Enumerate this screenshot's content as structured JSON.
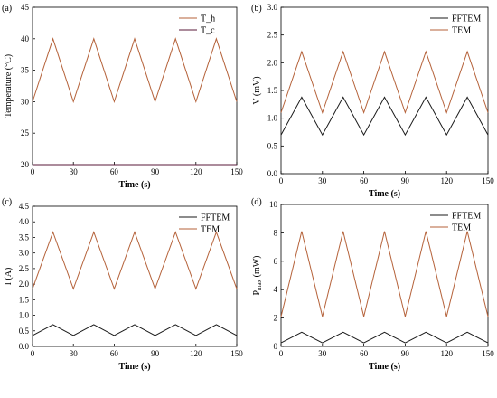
{
  "chart_data": [
    {
      "type": "line",
      "panel_label": "(a)",
      "xlabel": "Time (s)",
      "ylabel": "Temperature (°C)",
      "xlim": [
        0,
        150
      ],
      "ylim": [
        20,
        45
      ],
      "xticks": [
        "0",
        "30",
        "60",
        "90",
        "120",
        "150"
      ],
      "yticks": [
        "20",
        "25",
        "30",
        "35",
        "40",
        "45"
      ],
      "legend_position": "top-right",
      "series": [
        {
          "name": "T_h",
          "color": "#b5623a",
          "x": [
            0,
            15,
            30,
            45,
            60,
            75,
            90,
            105,
            120,
            135,
            150
          ],
          "y": [
            30,
            40,
            30,
            40,
            30,
            40,
            30,
            40,
            30,
            40,
            30
          ]
        },
        {
          "name": "T_c",
          "color": "#5a1a3a",
          "x": [
            0,
            150
          ],
          "y": [
            20,
            20
          ]
        }
      ]
    },
    {
      "type": "line",
      "panel_label": "(b)",
      "xlabel": "Time (s)",
      "ylabel": "V (mV)",
      "xlim": [
        0,
        150
      ],
      "ylim": [
        0,
        3
      ],
      "xticks": [
        "0",
        "30",
        "60",
        "90",
        "120",
        "150"
      ],
      "yticks": [
        "0.0",
        "0.5",
        "1.0",
        "1.5",
        "2.0",
        "2.5",
        "3.0"
      ],
      "legend_position": "top-right",
      "series": [
        {
          "name": "FFTEM",
          "color": "#1a1a1a",
          "x": [
            0,
            15,
            30,
            45,
            60,
            75,
            90,
            105,
            120,
            135,
            150
          ],
          "y": [
            0.7,
            1.38,
            0.7,
            1.38,
            0.7,
            1.38,
            0.7,
            1.38,
            0.7,
            1.38,
            0.7
          ]
        },
        {
          "name": "TEM",
          "color": "#b5623a",
          "x": [
            0,
            15,
            30,
            45,
            60,
            75,
            90,
            105,
            120,
            135,
            150
          ],
          "y": [
            1.1,
            2.2,
            1.1,
            2.2,
            1.1,
            2.2,
            1.1,
            2.2,
            1.1,
            2.2,
            1.1
          ]
        }
      ]
    },
    {
      "type": "line",
      "panel_label": "(c)",
      "xlabel": "Time (s)",
      "ylabel": "I (A)",
      "xlim": [
        0,
        150
      ],
      "ylim": [
        0,
        4.5
      ],
      "xticks": [
        "0",
        "30",
        "60",
        "90",
        "120",
        "150"
      ],
      "yticks": [
        "0.0",
        "0.5",
        "1.0",
        "1.5",
        "2.0",
        "2.5",
        "3.0",
        "3.5",
        "4.0",
        "4.5"
      ],
      "legend_position": "top-right",
      "series": [
        {
          "name": "FFTEM",
          "color": "#1a1a1a",
          "x": [
            0,
            15,
            30,
            45,
            60,
            75,
            90,
            105,
            120,
            135,
            150
          ],
          "y": [
            0.35,
            0.7,
            0.35,
            0.7,
            0.35,
            0.7,
            0.35,
            0.7,
            0.35,
            0.7,
            0.35
          ]
        },
        {
          "name": "TEM",
          "color": "#b5623a",
          "x": [
            0,
            15,
            30,
            45,
            60,
            75,
            90,
            105,
            120,
            135,
            150
          ],
          "y": [
            1.85,
            3.67,
            1.85,
            3.67,
            1.85,
            3.67,
            1.85,
            3.67,
            1.85,
            3.67,
            1.85
          ]
        }
      ]
    },
    {
      "type": "line",
      "panel_label": "(d)",
      "xlabel": "Time (s)",
      "ylabel_main": "P",
      "ylabel_sub": "max",
      "ylabel_unit": " (mW)",
      "xlim": [
        0,
        150
      ],
      "ylim": [
        0,
        10
      ],
      "xticks": [
        "0",
        "30",
        "60",
        "90",
        "120",
        "150"
      ],
      "yticks": [
        "0",
        "2",
        "4",
        "6",
        "8",
        "10"
      ],
      "legend_position": "top-right",
      "series": [
        {
          "name": "FFTEM",
          "color": "#1a1a1a",
          "x": [
            0,
            15,
            30,
            45,
            60,
            75,
            90,
            105,
            120,
            135,
            150
          ],
          "y": [
            0.25,
            1.0,
            0.25,
            1.0,
            0.25,
            1.0,
            0.25,
            1.0,
            0.25,
            1.0,
            0.25
          ]
        },
        {
          "name": "TEM",
          "color": "#b5623a",
          "x": [
            0,
            15,
            30,
            45,
            60,
            75,
            90,
            105,
            120,
            135,
            150
          ],
          "y": [
            2.1,
            8.1,
            2.1,
            8.1,
            2.1,
            8.1,
            2.1,
            8.1,
            2.1,
            8.1,
            2.1
          ]
        }
      ]
    }
  ]
}
